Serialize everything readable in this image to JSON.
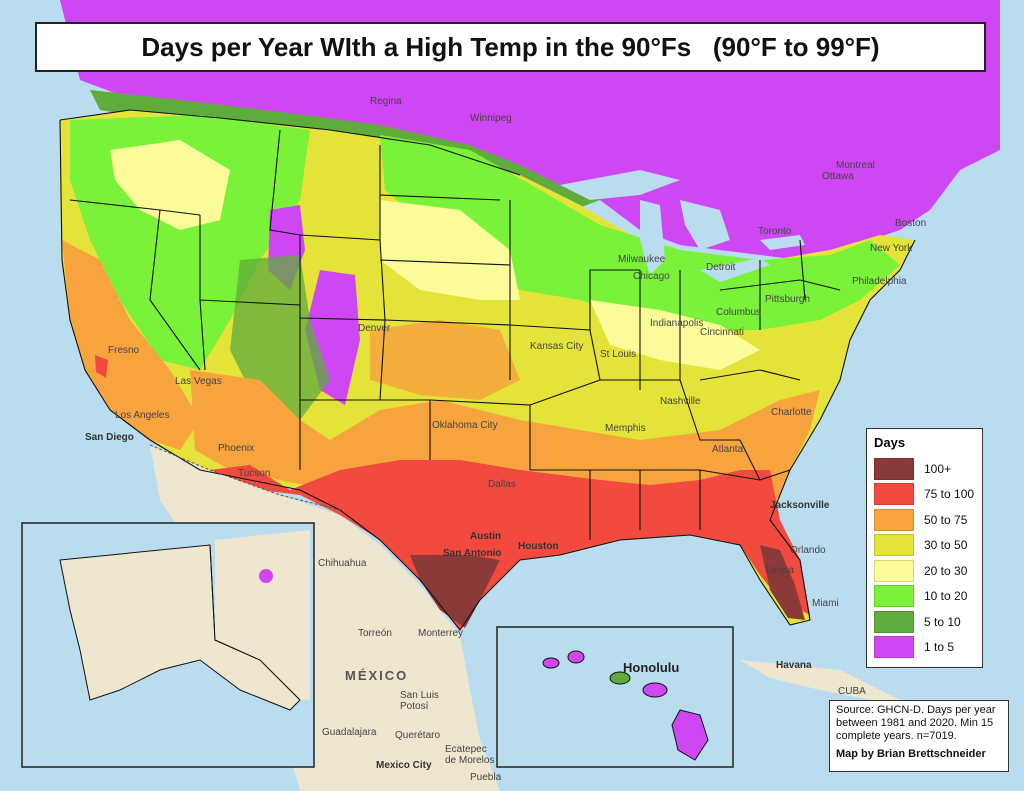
{
  "title": "Days per Year WIth a High Temp in the 90°Fs   (90°F to 99°F)",
  "legend": {
    "title": "Days",
    "items": [
      {
        "label": "100+",
        "color": "#8b3a3a"
      },
      {
        "label": "75 to 100",
        "color": "#f24a3f"
      },
      {
        "label": "50 to 75",
        "color": "#f7a43f"
      },
      {
        "label": "30 to 50",
        "color": "#e3e33a"
      },
      {
        "label": "20 to 30",
        "color": "#fbfb9a"
      },
      {
        "label": "10 to 20",
        "color": "#7af23a"
      },
      {
        "label": "5 to 10",
        "color": "#5fab3c"
      },
      {
        "label": "1 to 5",
        "color": "#cf47f2"
      }
    ]
  },
  "source": {
    "text": "Source: GHCN-D. Days per year between 1981 and 2020. Min 15 complete years. n=7019.",
    "credit": "Map by Brian Brettschneider"
  },
  "places": {
    "los_angeles": "Los Angeles",
    "san_diego": "San Diego",
    "phoenix": "Phoenix",
    "tucson": "Tucson",
    "fresno": "Fresno",
    "las_vegas": "Las Vegas",
    "denver": "Denver",
    "dallas": "Dallas",
    "austin": "Austin",
    "san_antonio": "San Antonio",
    "houston": "Houston",
    "oklahoma_city": "Oklahoma City",
    "kansas_city": "Kansas City",
    "st_louis": "St Louis",
    "chicago": "Chicago",
    "memphis": "Memphis",
    "nashville": "Nashville",
    "atlanta": "Atlanta",
    "charlotte": "Charlotte",
    "jacksonville": "Jacksonville",
    "tampa": "Tampa",
    "orlando": "Orlando",
    "miami": "Miami",
    "havana": "Havana",
    "cuba": "CUBA",
    "chihuahua": "Chihuahua",
    "torreon": "Torreón",
    "monterrey": "Monterrey",
    "mexico": "MÉXICO",
    "san_luis_potosi": "San Luis Potosí",
    "guadalajara": "Guadalajara",
    "queretaro": "Querétaro",
    "ecatepec": "Ecatepec de Morelos",
    "mexico_city": "Mexico City",
    "puebla": "Puebla",
    "honolulu": "Honolulu",
    "new_york": "New York",
    "boston": "Boston",
    "philadelphia": "Philadelphia",
    "indianapolis": "Indianapolis",
    "columbus": "Columbus",
    "cincinnati": "Cincinnati",
    "pittsburgh": "Pittsburgh",
    "toronto": "Toronto",
    "ottawa": "Ottawa",
    "montreal": "Montreal",
    "milwaukee": "Milwaukee",
    "detroit": "Detroit",
    "winnipeg": "Winnipeg",
    "regina": "Regina"
  }
}
